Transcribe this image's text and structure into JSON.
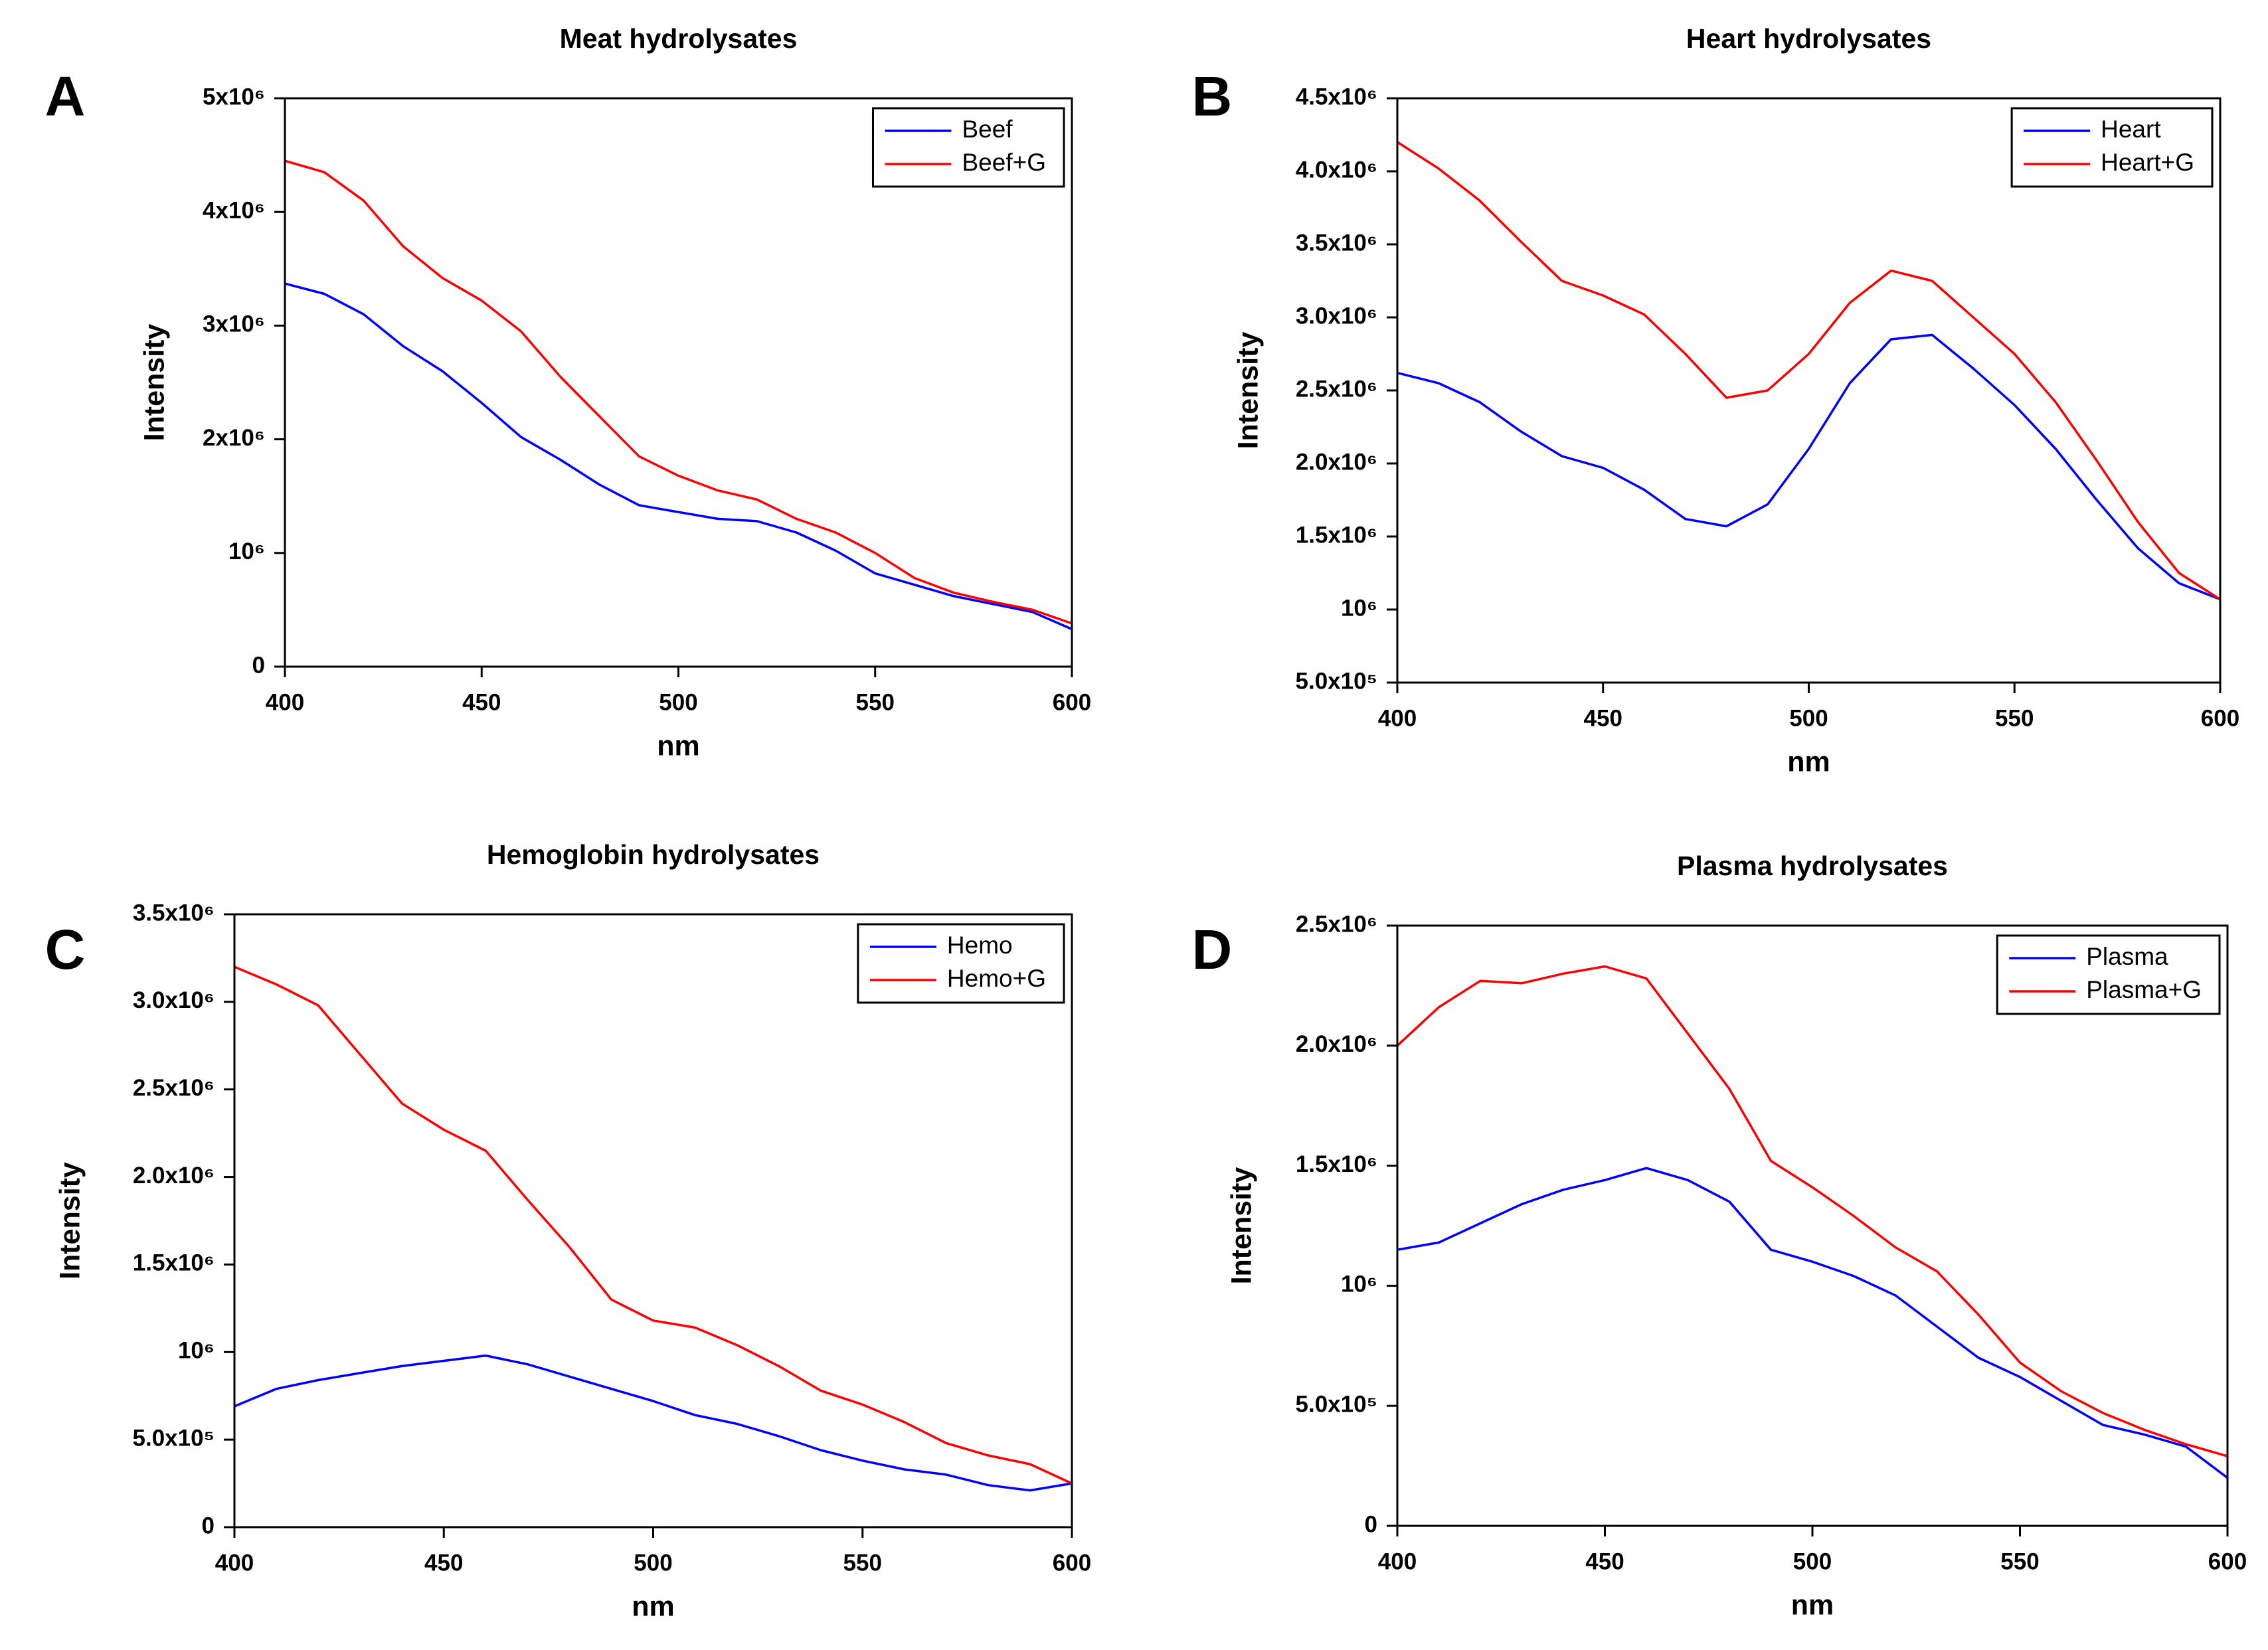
{
  "chart_data": [
    {
      "type": "line",
      "panel": "A",
      "title": "Meat hydrolysates",
      "xlabel": "nm",
      "ylabel": "Intensity",
      "legend": "upper right",
      "x": [
        400,
        410,
        420,
        430,
        440,
        450,
        460,
        470,
        480,
        490,
        500,
        510,
        520,
        530,
        540,
        550,
        560,
        570,
        580,
        590,
        600
      ],
      "series": [
        {
          "name": "Beef",
          "color": "#0000ff",
          "values": [
            3370000,
            3280000,
            3100000,
            2820000,
            2600000,
            2320000,
            2020000,
            1820000,
            1600000,
            1420000,
            1360000,
            1300000,
            1280000,
            1180000,
            1020000,
            820000,
            720000,
            620000,
            550000,
            480000,
            330000
          ]
        },
        {
          "name": "Beef+G",
          "color": "#ff0000",
          "values": [
            4450000,
            4350000,
            4100000,
            3700000,
            3420000,
            3220000,
            2950000,
            2550000,
            2200000,
            1850000,
            1680000,
            1550000,
            1470000,
            1300000,
            1180000,
            1000000,
            780000,
            650000,
            570000,
            500000,
            380000
          ]
        }
      ],
      "xlim": [
        400,
        600
      ],
      "xticks": [
        400,
        450,
        500,
        550,
        600
      ],
      "ylim": [
        0,
        5000000
      ],
      "yticks": [
        0,
        {
          "value": 1000000,
          "label": "10⁶"
        },
        {
          "value": 2000000,
          "label": "2x10⁶"
        },
        {
          "value": 3000000,
          "label": "3x10⁶"
        },
        {
          "value": 4000000,
          "label": "4x10⁶"
        },
        {
          "value": 5000000,
          "label": "5x10⁶"
        }
      ]
    },
    {
      "type": "line",
      "panel": "B",
      "title": "Heart hydrolysates",
      "xlabel": "nm",
      "ylabel": "Intensity",
      "legend": "upper right",
      "x": [
        400,
        410,
        420,
        430,
        440,
        450,
        460,
        470,
        480,
        490,
        500,
        510,
        520,
        530,
        540,
        550,
        560,
        570,
        580,
        590,
        600
      ],
      "series": [
        {
          "name": "Heart",
          "color": "#0000ff",
          "values": [
            2620000,
            2550000,
            2420000,
            2220000,
            2050000,
            1970000,
            1820000,
            1620000,
            1570000,
            1720000,
            2100000,
            2550000,
            2850000,
            2880000,
            2650000,
            2400000,
            2100000,
            1750000,
            1420000,
            1180000,
            1070000
          ]
        },
        {
          "name": "Heart+G",
          "color": "#ff0000",
          "values": [
            4200000,
            4020000,
            3800000,
            3520000,
            3250000,
            3150000,
            3020000,
            2750000,
            2450000,
            2500000,
            2750000,
            3100000,
            3320000,
            3250000,
            3000000,
            2750000,
            2420000,
            2020000,
            1600000,
            1250000,
            1070000
          ]
        }
      ],
      "xlim": [
        400,
        600
      ],
      "xticks": [
        400,
        450,
        500,
        550,
        600
      ],
      "ylim": [
        500000,
        4500000
      ],
      "yticks": [
        {
          "value": 500000,
          "label": "5.0x10⁵"
        },
        {
          "value": 1000000,
          "label": "10⁶"
        },
        {
          "value": 1500000,
          "label": "1.5x10⁶"
        },
        {
          "value": 2000000,
          "label": "2.0x10⁶"
        },
        {
          "value": 2500000,
          "label": "2.5x10⁶"
        },
        {
          "value": 3000000,
          "label": "3.0x10⁶"
        },
        {
          "value": 3500000,
          "label": "3.5x10⁶"
        },
        {
          "value": 4000000,
          "label": "4.0x10⁶"
        },
        {
          "value": 4500000,
          "label": "4.5x10⁶"
        }
      ]
    },
    {
      "type": "line",
      "panel": "C",
      "title": "Hemoglobin hydrolysates",
      "xlabel": "nm",
      "ylabel": "Intensity",
      "legend": "upper right",
      "x": [
        400,
        410,
        420,
        430,
        440,
        450,
        460,
        470,
        480,
        490,
        500,
        510,
        520,
        530,
        540,
        550,
        560,
        570,
        580,
        590,
        600
      ],
      "series": [
        {
          "name": "Hemo",
          "color": "#0000ff",
          "values": [
            690000,
            790000,
            840000,
            880000,
            920000,
            950000,
            980000,
            930000,
            860000,
            790000,
            720000,
            640000,
            590000,
            520000,
            440000,
            380000,
            330000,
            300000,
            240000,
            210000,
            250000
          ]
        },
        {
          "name": "Hemo+G",
          "color": "#ff0000",
          "values": [
            3200000,
            3100000,
            2980000,
            2700000,
            2420000,
            2270000,
            2150000,
            1870000,
            1600000,
            1300000,
            1180000,
            1140000,
            1040000,
            920000,
            780000,
            700000,
            600000,
            480000,
            410000,
            360000,
            250000
          ]
        }
      ],
      "xlim": [
        400,
        600
      ],
      "xticks": [
        400,
        450,
        500,
        550,
        600
      ],
      "ylim": [
        0,
        3500000
      ],
      "yticks": [
        0,
        {
          "value": 500000,
          "label": "5.0x10⁵"
        },
        {
          "value": 1000000,
          "label": "10⁶"
        },
        {
          "value": 1500000,
          "label": "1.5x10⁶"
        },
        {
          "value": 2000000,
          "label": "2.0x10⁶"
        },
        {
          "value": 2500000,
          "label": "2.5x10⁶"
        },
        {
          "value": 3000000,
          "label": "3.0x10⁶"
        },
        {
          "value": 3500000,
          "label": "3.5x10⁶"
        }
      ]
    },
    {
      "type": "line",
      "panel": "D",
      "title": "Plasma hydrolysates",
      "xlabel": "nm",
      "ylabel": "Intensity",
      "legend": "upper right",
      "x": [
        400,
        410,
        420,
        430,
        440,
        450,
        460,
        470,
        480,
        490,
        500,
        510,
        520,
        530,
        540,
        550,
        560,
        570,
        580,
        590,
        600
      ],
      "series": [
        {
          "name": "Plasma",
          "color": "#0000ff",
          "values": [
            1150000,
            1180000,
            1260000,
            1340000,
            1400000,
            1440000,
            1490000,
            1440000,
            1350000,
            1150000,
            1100000,
            1040000,
            960000,
            830000,
            700000,
            620000,
            520000,
            420000,
            380000,
            330000,
            200000
          ]
        },
        {
          "name": "Plasma+G",
          "color": "#ff0000",
          "values": [
            2000000,
            2160000,
            2270000,
            2260000,
            2300000,
            2330000,
            2280000,
            2050000,
            1820000,
            1520000,
            1410000,
            1290000,
            1160000,
            1060000,
            880000,
            680000,
            560000,
            470000,
            400000,
            340000,
            290000
          ]
        }
      ],
      "xlim": [
        400,
        600
      ],
      "xticks": [
        400,
        450,
        500,
        550,
        600
      ],
      "ylim": [
        0,
        2500000
      ],
      "yticks": [
        0,
        {
          "value": 500000,
          "label": "5.0x10⁵"
        },
        {
          "value": 1000000,
          "label": "10⁶"
        },
        {
          "value": 1500000,
          "label": "1.5x10⁶"
        },
        {
          "value": 2000000,
          "label": "2.0x10⁶"
        },
        {
          "value": 2500000,
          "label": "2.5x10⁶"
        }
      ]
    }
  ]
}
